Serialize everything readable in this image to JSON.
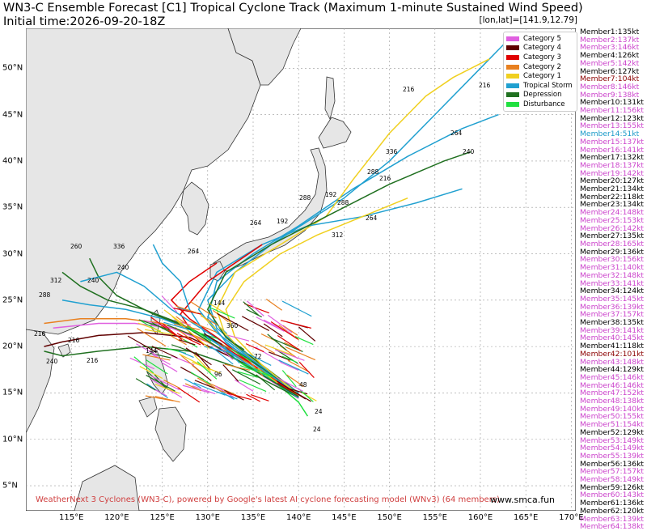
{
  "title": "WN3-C Ensemble Forecast [C1] Tropical Cyclone Track (Maximum 1-minute Sustained Wind Speed)",
  "initial_time": "Initial time:2026-09-20-18Z",
  "coord_readout": "[lon,lat]=[141.9,12.79]",
  "legend": [
    {
      "label": "Category 5",
      "color": "#e060e0"
    },
    {
      "label": "Category 4",
      "color": "#600000"
    },
    {
      "label": "Category 3",
      "color": "#e00000"
    },
    {
      "label": "Category 2",
      "color": "#e88020"
    },
    {
      "label": "Category 1",
      "color": "#f0d020"
    },
    {
      "label": "Tropical Storm",
      "color": "#20a0d0"
    },
    {
      "label": "Depression",
      "color": "#207020"
    },
    {
      "label": "Disturbance",
      "color": "#20e040"
    }
  ],
  "x_ticks": [
    "115°E",
    "120°E",
    "125°E",
    "130°E",
    "135°E",
    "140°E",
    "145°E",
    "150°E",
    "155°E",
    "160°E",
    "165°E",
    "170°E"
  ],
  "y_ticks": [
    "50°N",
    "45°N",
    "40°N",
    "35°N",
    "30°N",
    "25°N",
    "20°N",
    "15°N",
    "10°N",
    "5°N"
  ],
  "members": [
    {
      "label": "Member1:135kt",
      "color": "#000000"
    },
    {
      "label": "Member2:137kt",
      "color": "#cc44cc"
    },
    {
      "label": "Member3:146kt",
      "color": "#cc44cc"
    },
    {
      "label": "Member4:126kt",
      "color": "#000000"
    },
    {
      "label": "Member5:142kt",
      "color": "#cc44cc"
    },
    {
      "label": "Member6:127kt",
      "color": "#000000"
    },
    {
      "label": "Member7:104kt",
      "color": "#8b0000"
    },
    {
      "label": "Member8:146kt",
      "color": "#cc44cc"
    },
    {
      "label": "Member9:138kt",
      "color": "#cc44cc"
    },
    {
      "label": "Member10:131kt",
      "color": "#000000"
    },
    {
      "label": "Member11:156kt",
      "color": "#cc44cc"
    },
    {
      "label": "Member12:123kt",
      "color": "#000000"
    },
    {
      "label": "Member13:155kt",
      "color": "#cc44cc"
    },
    {
      "label": "Member14:51kt",
      "color": "#1a9ac8"
    },
    {
      "label": "Member15:137kt",
      "color": "#cc44cc"
    },
    {
      "label": "Member16:141kt",
      "color": "#cc44cc"
    },
    {
      "label": "Member17:132kt",
      "color": "#000000"
    },
    {
      "label": "Member18:137kt",
      "color": "#cc44cc"
    },
    {
      "label": "Member19:142kt",
      "color": "#cc44cc"
    },
    {
      "label": "Member20:127kt",
      "color": "#000000"
    },
    {
      "label": "Member21:134kt",
      "color": "#000000"
    },
    {
      "label": "Member22:118kt",
      "color": "#000000"
    },
    {
      "label": "Member23:134kt",
      "color": "#000000"
    },
    {
      "label": "Member24:148kt",
      "color": "#cc44cc"
    },
    {
      "label": "Member25:153kt",
      "color": "#cc44cc"
    },
    {
      "label": "Member26:142kt",
      "color": "#cc44cc"
    },
    {
      "label": "Member27:135kt",
      "color": "#000000"
    },
    {
      "label": "Member28:165kt",
      "color": "#cc44cc"
    },
    {
      "label": "Member29:136kt",
      "color": "#000000"
    },
    {
      "label": "Member30:156kt",
      "color": "#cc44cc"
    },
    {
      "label": "Member31:140kt",
      "color": "#cc44cc"
    },
    {
      "label": "Member32:148kt",
      "color": "#cc44cc"
    },
    {
      "label": "Member33:141kt",
      "color": "#cc44cc"
    },
    {
      "label": "Member34:124kt",
      "color": "#000000"
    },
    {
      "label": "Member35:145kt",
      "color": "#cc44cc"
    },
    {
      "label": "Member36:139kt",
      "color": "#cc44cc"
    },
    {
      "label": "Member37:157kt",
      "color": "#cc44cc"
    },
    {
      "label": "Member38:135kt",
      "color": "#000000"
    },
    {
      "label": "Member39:141kt",
      "color": "#cc44cc"
    },
    {
      "label": "Member40:145kt",
      "color": "#cc44cc"
    },
    {
      "label": "Member41:118kt",
      "color": "#000000"
    },
    {
      "label": "Member42:101kt",
      "color": "#8b0000"
    },
    {
      "label": "Member43:148kt",
      "color": "#cc44cc"
    },
    {
      "label": "Member44:129kt",
      "color": "#000000"
    },
    {
      "label": "Member45:146kt",
      "color": "#cc44cc"
    },
    {
      "label": "Member46:146kt",
      "color": "#cc44cc"
    },
    {
      "label": "Member47:152kt",
      "color": "#cc44cc"
    },
    {
      "label": "Member48:138kt",
      "color": "#cc44cc"
    },
    {
      "label": "Member49:140kt",
      "color": "#cc44cc"
    },
    {
      "label": "Member50:155kt",
      "color": "#cc44cc"
    },
    {
      "label": "Member51:154kt",
      "color": "#cc44cc"
    },
    {
      "label": "Member52:129kt",
      "color": "#000000"
    },
    {
      "label": "Member53:149kt",
      "color": "#cc44cc"
    },
    {
      "label": "Member54:149kt",
      "color": "#cc44cc"
    },
    {
      "label": "Member55:139kt",
      "color": "#cc44cc"
    },
    {
      "label": "Member56:136kt",
      "color": "#000000"
    },
    {
      "label": "Member57:157kt",
      "color": "#cc44cc"
    },
    {
      "label": "Member58:149kt",
      "color": "#cc44cc"
    },
    {
      "label": "Member59:126kt",
      "color": "#000000"
    },
    {
      "label": "Member60:143kt",
      "color": "#cc44cc"
    },
    {
      "label": "Member61:136kt",
      "color": "#000000"
    },
    {
      "label": "Member62:120kt",
      "color": "#000000"
    },
    {
      "label": "Member63:139kt",
      "color": "#cc44cc"
    },
    {
      "label": "Member64:138kt",
      "color": "#cc44cc"
    }
  ],
  "footer": "WeatherNext 3 Cyclones (WN3-C), powered by Google's latest AI cyclone forecasting model (WNv3) (64 members)",
  "site": "www.smca.fun",
  "tracks": [
    {
      "color": "#20a0d0",
      "pts": [
        [
          140,
          14.5
        ],
        [
          137,
          17
        ],
        [
          134,
          19.5
        ],
        [
          131,
          22
        ],
        [
          130,
          25
        ],
        [
          133,
          28
        ],
        [
          137,
          31
        ],
        [
          141,
          33.5
        ],
        [
          145,
          36
        ],
        [
          150,
          40
        ],
        [
          155,
          45
        ],
        [
          160,
          50
        ],
        [
          163,
          53
        ]
      ]
    },
    {
      "color": "#20a0d0",
      "pts": [
        [
          140,
          14.8
        ],
        [
          136,
          17.5
        ],
        [
          132,
          20.5
        ],
        [
          130,
          23
        ],
        [
          131,
          27
        ],
        [
          135,
          30
        ],
        [
          140,
          33
        ],
        [
          146,
          37
        ],
        [
          152,
          40.5
        ],
        [
          158,
          43.5
        ],
        [
          162,
          45
        ]
      ]
    },
    {
      "color": "#f0d020",
      "pts": [
        [
          140,
          14.6
        ],
        [
          136,
          17.8
        ],
        [
          132,
          21
        ],
        [
          131,
          24
        ],
        [
          133,
          28
        ],
        [
          138,
          31
        ],
        [
          143,
          34
        ],
        [
          146,
          38
        ],
        [
          150,
          43
        ],
        [
          154,
          47
        ],
        [
          157,
          49
        ],
        [
          161,
          51
        ]
      ]
    },
    {
      "color": "#20a0d0",
      "pts": [
        [
          139.5,
          15
        ],
        [
          135,
          18.5
        ],
        [
          131,
          21.5
        ],
        [
          129,
          24
        ],
        [
          131,
          28
        ],
        [
          136,
          31
        ],
        [
          141,
          33
        ],
        [
          147,
          34
        ],
        [
          153,
          35.5
        ],
        [
          158,
          37
        ]
      ]
    },
    {
      "color": "#207020",
      "pts": [
        [
          140,
          15
        ],
        [
          136,
          18
        ],
        [
          132,
          21
        ],
        [
          130,
          24
        ],
        [
          132,
          28
        ],
        [
          137,
          31
        ],
        [
          143,
          34
        ],
        [
          150,
          37.5
        ],
        [
          156,
          40
        ],
        [
          159,
          41
        ]
      ]
    },
    {
      "color": "#e00000",
      "pts": [
        [
          140,
          14.5
        ],
        [
          135,
          18
        ],
        [
          131,
          20.5
        ],
        [
          128,
          22
        ],
        [
          127,
          23.5
        ],
        [
          130,
          27
        ],
        [
          133,
          29
        ],
        [
          136,
          31
        ]
      ]
    },
    {
      "color": "#20a0d0",
      "pts": [
        [
          140,
          14.8
        ],
        [
          134,
          18.5
        ],
        [
          129,
          21.5
        ],
        [
          125,
          23
        ],
        [
          121,
          24
        ],
        [
          117,
          24.5
        ],
        [
          114,
          25
        ]
      ]
    },
    {
      "color": "#207020",
      "pts": [
        [
          140,
          15
        ],
        [
          134,
          19
        ],
        [
          128,
          22
        ],
        [
          124,
          23.5
        ],
        [
          120,
          25.5
        ],
        [
          118,
          27.5
        ],
        [
          117,
          29.5
        ]
      ]
    },
    {
      "color": "#600000",
      "pts": [
        [
          140,
          14.6
        ],
        [
          134,
          18.2
        ],
        [
          128,
          21
        ],
        [
          123,
          21.5
        ],
        [
          118,
          21.2
        ],
        [
          114,
          20.5
        ],
        [
          112,
          20
        ]
      ]
    },
    {
      "color": "#e060e0",
      "pts": [
        [
          140,
          14.4
        ],
        [
          135,
          17.5
        ],
        [
          130,
          20.5
        ],
        [
          126,
          22
        ],
        [
          122,
          22.5
        ],
        [
          118,
          22.5
        ],
        [
          113,
          22
        ]
      ]
    },
    {
      "color": "#e88020",
      "pts": [
        [
          140,
          14.7
        ],
        [
          135,
          18
        ],
        [
          129,
          21
        ],
        [
          125,
          22.5
        ],
        [
          121,
          23
        ],
        [
          116,
          23
        ],
        [
          112,
          22.5
        ]
      ]
    },
    {
      "color": "#20e040",
      "pts": [
        [
          141,
          12.5
        ],
        [
          140,
          14
        ],
        [
          137,
          16.5
        ],
        [
          134,
          18
        ],
        [
          131,
          20
        ]
      ]
    },
    {
      "color": "#207020",
      "pts": [
        [
          140,
          14.5
        ],
        [
          134,
          17.5
        ],
        [
          128,
          19.5
        ],
        [
          123,
          20
        ],
        [
          118,
          19.5
        ],
        [
          114,
          19
        ],
        [
          112,
          19.5
        ]
      ]
    },
    {
      "color": "#20a0d0",
      "pts": [
        [
          140,
          15
        ],
        [
          135,
          18.5
        ],
        [
          130,
          21.5
        ],
        [
          126,
          24
        ],
        [
          123,
          26.5
        ],
        [
          120,
          28
        ],
        [
          116,
          27
        ]
      ]
    },
    {
      "color": "#e00000",
      "pts": [
        [
          140,
          14.6
        ],
        [
          135,
          18
        ],
        [
          131,
          21
        ],
        [
          128,
          23
        ],
        [
          126,
          25
        ],
        [
          128,
          27
        ],
        [
          131,
          29
        ]
      ]
    },
    {
      "color": "#f0d020",
      "pts": [
        [
          140,
          14.8
        ],
        [
          136,
          18
        ],
        [
          133,
          21
        ],
        [
          132,
          24
        ],
        [
          134,
          27
        ],
        [
          138,
          30
        ],
        [
          142,
          32
        ],
        [
          147,
          34
        ],
        [
          152,
          36
        ]
      ]
    },
    {
      "color": "#20a0d0",
      "pts": [
        [
          140,
          14.5
        ],
        [
          136,
          17
        ],
        [
          133,
          19
        ],
        [
          130,
          21
        ],
        [
          128,
          24
        ],
        [
          127,
          27
        ],
        [
          125,
          29
        ],
        [
          124,
          31
        ]
      ]
    },
    {
      "color": "#207020",
      "pts": [
        [
          140,
          14.6
        ],
        [
          135,
          17.5
        ],
        [
          131,
          20
        ],
        [
          127,
          22.5
        ],
        [
          123,
          24
        ],
        [
          119,
          25
        ],
        [
          116,
          26.5
        ],
        [
          114,
          28
        ]
      ]
    }
  ]
}
